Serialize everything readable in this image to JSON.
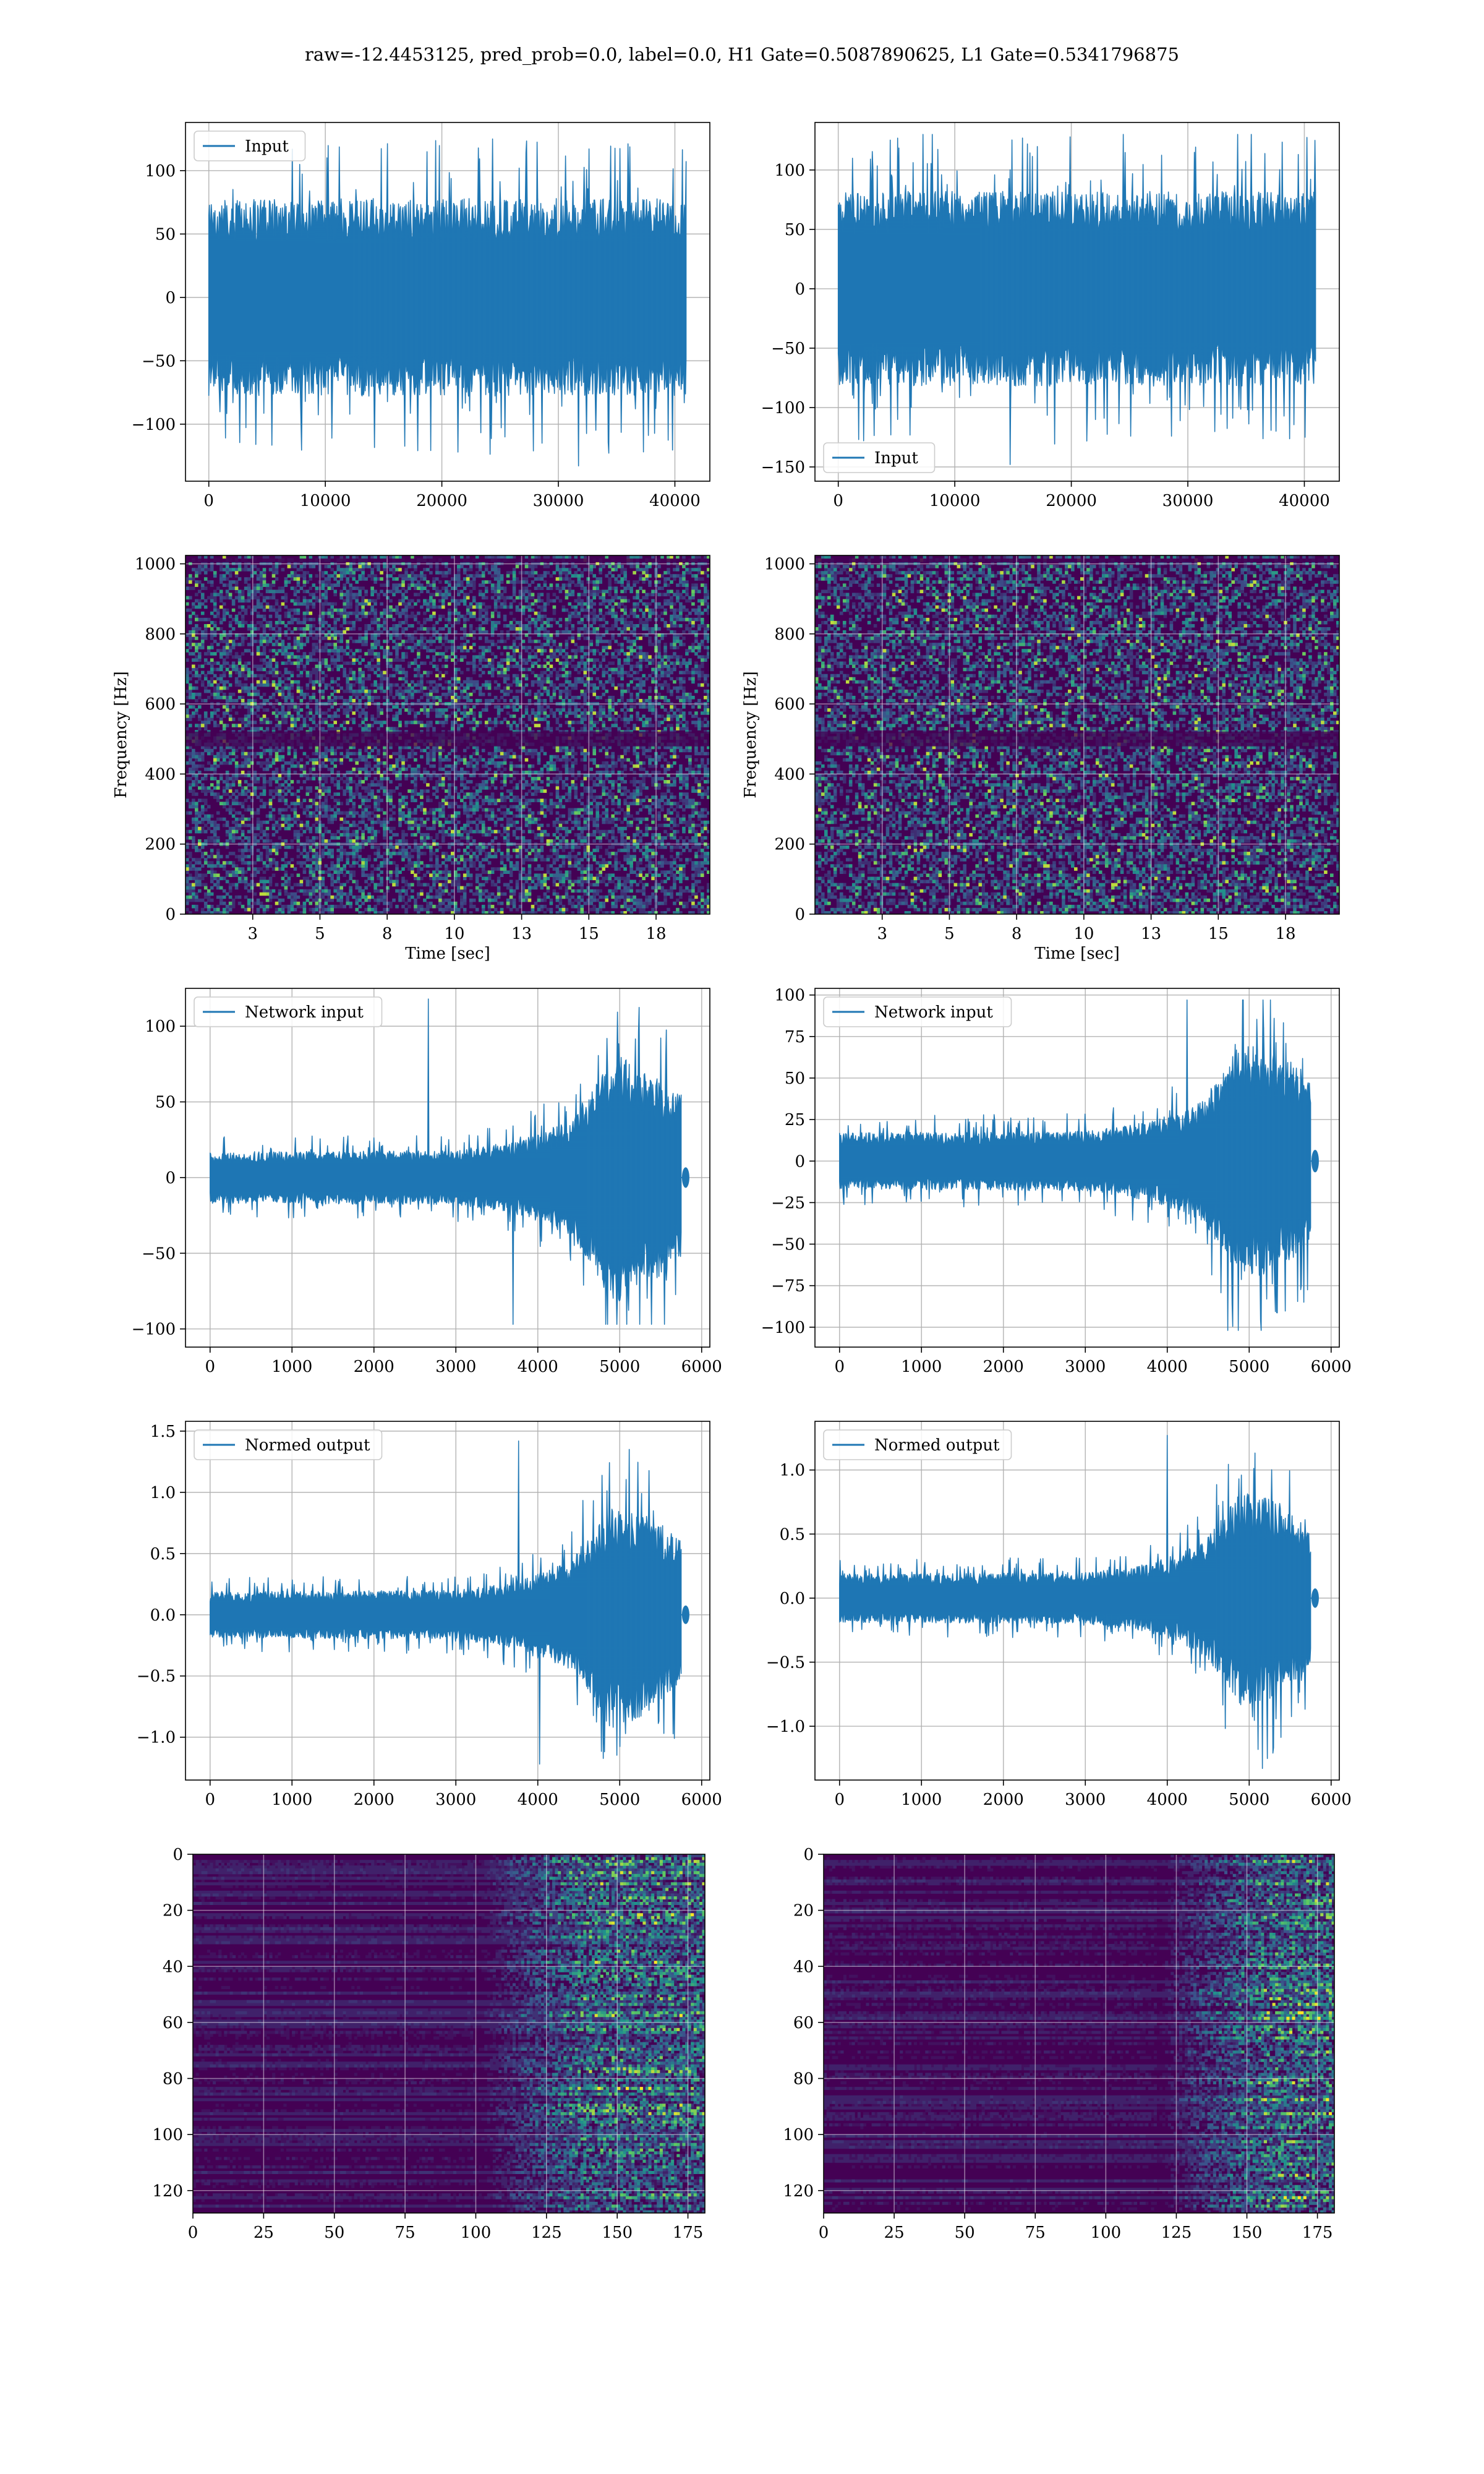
{
  "figure": {
    "suptitle": "raw=-12.4453125, pred_prob=0.0, label=0.0, H1 Gate=0.5087890625, L1 Gate=0.5341796875"
  },
  "colors": {
    "line": "#1f77b4",
    "viridis_low": "#440154",
    "viridis_mid": "#21918c",
    "viridis_high": "#fde725",
    "grid": "#b0b0b0"
  },
  "chart_data": [
    {
      "id": "h1-input",
      "type": "line",
      "series": [
        {
          "name": "Input"
        }
      ],
      "legend": "upper-left",
      "xlim": [
        -2000,
        43000
      ],
      "ylim": [
        -145,
        138
      ],
      "xticks": [
        0,
        10000,
        20000,
        30000,
        40000
      ],
      "yticks": [
        -100,
        -50,
        0,
        50,
        100
      ],
      "signal": {
        "kind": "noise",
        "n_samples": 40960,
        "envelope_x": [
          0,
          40960
        ],
        "envelope_y": [
          78,
          78
        ],
        "peak_max": 125,
        "peak_min": -133
      },
      "grid": true
    },
    {
      "id": "l1-input",
      "type": "line",
      "series": [
        {
          "name": "Input"
        }
      ],
      "legend": "lower-left",
      "xlim": [
        -2000,
        43000
      ],
      "ylim": [
        -162,
        140
      ],
      "xticks": [
        0,
        10000,
        20000,
        30000,
        40000
      ],
      "yticks": [
        -150,
        -100,
        -50,
        0,
        50,
        100
      ],
      "signal": {
        "kind": "noise",
        "n_samples": 40960,
        "envelope_x": [
          0,
          40960
        ],
        "envelope_y": [
          82,
          82
        ],
        "peak_max": 130,
        "peak_min": -148
      },
      "grid": true
    },
    {
      "id": "h1-spectrogram",
      "type": "heatmap",
      "xlabel": "Time [sec]",
      "ylabel": "Frequency [Hz]",
      "xlim": [
        0,
        19.5
      ],
      "ylim": [
        0,
        1024
      ],
      "xticks": [
        2.5,
        5.0,
        7.5,
        10.0,
        12.5,
        15.0,
        17.5
      ],
      "yticks": [
        0,
        200,
        400,
        600,
        800,
        1000
      ],
      "texture": "speckle",
      "colormap": "viridis",
      "grid": true
    },
    {
      "id": "l1-spectrogram",
      "type": "heatmap",
      "xlabel": "Time [sec]",
      "ylabel": "Frequency [Hz]",
      "xlim": [
        0,
        19.5
      ],
      "ylim": [
        0,
        1024
      ],
      "xticks": [
        2.5,
        5.0,
        7.5,
        10.0,
        12.5,
        15.0,
        17.5
      ],
      "yticks": [
        0,
        200,
        400,
        600,
        800,
        1000
      ],
      "texture": "speckle",
      "colormap": "viridis",
      "grid": true
    },
    {
      "id": "h1-network-input",
      "type": "line",
      "series": [
        {
          "name": "Network input"
        }
      ],
      "legend": "upper-left",
      "xlim": [
        -300,
        6100
      ],
      "ylim": [
        -112,
        125
      ],
      "xticks": [
        0,
        1000,
        2000,
        3000,
        4000,
        5000,
        6000
      ],
      "yticks": [
        -100,
        -50,
        0,
        50,
        100
      ],
      "signal": {
        "kind": "chirp",
        "n_samples": 5800,
        "end": 5750,
        "envelope_x": [
          0,
          3000,
          3800,
          4400,
          4700,
          4900,
          5200,
          5500,
          5740
        ],
        "envelope_y": [
          17,
          18,
          25,
          38,
          62,
          85,
          75,
          65,
          55
        ],
        "peak_max": 118,
        "peak_min": -97
      },
      "grid": true
    },
    {
      "id": "l1-network-input",
      "type": "line",
      "series": [
        {
          "name": "Network input"
        }
      ],
      "legend": "upper-left",
      "xlim": [
        -300,
        6100
      ],
      "ylim": [
        -112,
        104
      ],
      "xticks": [
        0,
        1000,
        2000,
        3000,
        4000,
        5000,
        6000
      ],
      "yticks": [
        -100,
        -75,
        -50,
        -25,
        0,
        25,
        50,
        75,
        100
      ],
      "signal": {
        "kind": "chirp",
        "n_samples": 5800,
        "end": 5750,
        "envelope_x": [
          0,
          3000,
          3800,
          4400,
          4700,
          4900,
          5200,
          5500,
          5740
        ],
        "envelope_y": [
          17,
          18,
          24,
          35,
          55,
          72,
          68,
          60,
          52
        ],
        "peak_max": 97,
        "peak_min": -102
      },
      "grid": true
    },
    {
      "id": "h1-normed-output",
      "type": "line",
      "series": [
        {
          "name": "Normed output"
        }
      ],
      "legend": "upper-left",
      "xlim": [
        -300,
        6100
      ],
      "ylim": [
        -1.35,
        1.58
      ],
      "xticks": [
        0,
        1000,
        2000,
        3000,
        4000,
        5000,
        6000
      ],
      "yticks": [
        -1.0,
        -0.5,
        0.0,
        0.5,
        1.0,
        1.5
      ],
      "signal": {
        "kind": "chirp",
        "n_samples": 5800,
        "end": 5750,
        "envelope_x": [
          0,
          3000,
          3800,
          4400,
          4700,
          4900,
          5200,
          5500,
          5740
        ],
        "envelope_y": [
          0.19,
          0.2,
          0.28,
          0.45,
          0.72,
          0.95,
          0.85,
          0.75,
          0.62
        ],
        "peak_max": 1.42,
        "peak_min": -1.22
      },
      "grid": true
    },
    {
      "id": "l1-normed-output",
      "type": "line",
      "series": [
        {
          "name": "Normed output"
        }
      ],
      "legend": "upper-left",
      "xlim": [
        -300,
        6100
      ],
      "ylim": [
        -1.42,
        1.38
      ],
      "xticks": [
        0,
        1000,
        2000,
        3000,
        4000,
        5000,
        6000
      ],
      "yticks": [
        -1.0,
        -0.5,
        0.0,
        0.5,
        1.0
      ],
      "signal": {
        "kind": "chirp",
        "n_samples": 5800,
        "end": 5750,
        "envelope_x": [
          0,
          3000,
          3800,
          4400,
          4700,
          4900,
          5200,
          5500,
          5740
        ],
        "envelope_y": [
          0.19,
          0.2,
          0.27,
          0.42,
          0.65,
          0.85,
          0.8,
          0.7,
          0.6
        ],
        "peak_max": 1.27,
        "peak_min": -1.33
      },
      "grid": true
    },
    {
      "id": "h1-feature-map",
      "type": "heatmap",
      "xlim": [
        0,
        181
      ],
      "ylim": [
        128,
        0
      ],
      "xticks": [
        0,
        25,
        50,
        75,
        100,
        125,
        150,
        175
      ],
      "yticks": [
        0,
        20,
        40,
        60,
        80,
        100,
        120
      ],
      "texture": "rows",
      "onset": 100,
      "colormap": "viridis",
      "grid": true
    },
    {
      "id": "l1-feature-map",
      "type": "heatmap",
      "xlim": [
        0,
        181
      ],
      "ylim": [
        128,
        0
      ],
      "xticks": [
        0,
        25,
        50,
        75,
        100,
        125,
        150,
        175
      ],
      "yticks": [
        0,
        20,
        40,
        60,
        80,
        100,
        120
      ],
      "texture": "rows",
      "onset": 118,
      "colormap": "viridis",
      "grid": true
    }
  ]
}
